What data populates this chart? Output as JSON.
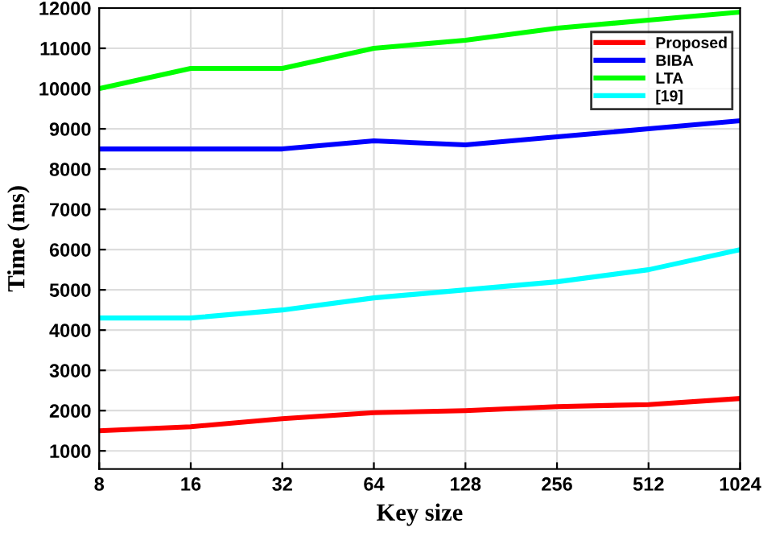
{
  "chart_data": {
    "type": "line",
    "xlabel": "Key size",
    "ylabel": "Time (ms)",
    "categories": [
      "8",
      "16",
      "32",
      "64",
      "128",
      "256",
      "512",
      "1024"
    ],
    "series": [
      {
        "name": "Proposed",
        "color": "#ff0000",
        "values": [
          1500,
          1600,
          1800,
          1950,
          2000,
          2100,
          2150,
          2300
        ]
      },
      {
        "name": "BIBA",
        "color": "#0000ff",
        "values": [
          8500,
          8500,
          8500,
          8700,
          8600,
          8800,
          9000,
          9200
        ]
      },
      {
        "name": "LTA",
        "color": "#00ff00",
        "values": [
          10000,
          10500,
          10500,
          11000,
          11200,
          11500,
          11700,
          11900
        ]
      },
      {
        "name": "[19]",
        "color": "#00ffff",
        "values": [
          4300,
          4300,
          4500,
          4800,
          5000,
          5200,
          5500,
          6000
        ]
      }
    ],
    "ylim": [
      550,
      12000
    ],
    "yticks": [
      1000,
      2000,
      3000,
      4000,
      5000,
      6000,
      7000,
      8000,
      9000,
      10000,
      11000,
      12000
    ],
    "grid": true,
    "legend": "top right",
    "marker": "none",
    "line_style": "solid"
  }
}
